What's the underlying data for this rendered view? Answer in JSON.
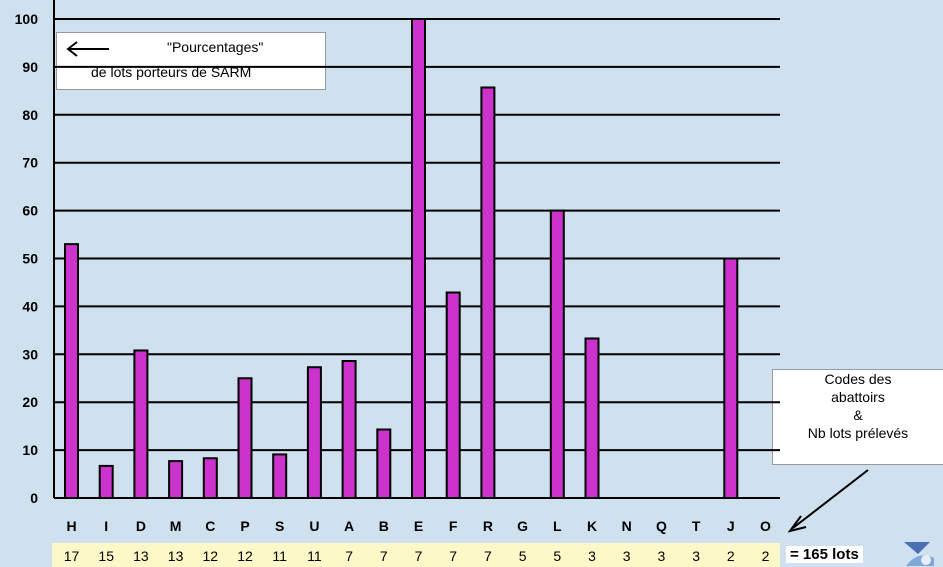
{
  "chart_data": {
    "type": "bar",
    "categories": [
      "H",
      "I",
      "D",
      "M",
      "C",
      "P",
      "S",
      "U",
      "A",
      "B",
      "E",
      "F",
      "R",
      "G",
      "L",
      "K",
      "N",
      "Q",
      "T",
      "J",
      "O"
    ],
    "values": [
      53,
      6.7,
      30.8,
      7.7,
      8.3,
      25,
      9.1,
      27.3,
      28.6,
      14.3,
      100,
      42.9,
      85.7,
      0,
      60,
      33.3,
      0,
      0,
      0,
      50,
      0
    ],
    "counts": [
      "17",
      "15",
      "13",
      "13",
      "12",
      "12",
      "11",
      "11",
      "7",
      "7",
      "7",
      "7",
      "7",
      "5",
      "5",
      "3",
      "3",
      "3",
      "3",
      "2",
      "2"
    ],
    "yticks": [
      "0",
      "10",
      "20",
      "30",
      "40",
      "50",
      "60",
      "70",
      "80",
      "90",
      "100"
    ],
    "ylim": [
      0,
      100
    ],
    "grid": true,
    "bar_color": "#cc33cc",
    "bar_outline": "#000000",
    "background": "#cfe0ee"
  },
  "legend": {
    "line1": "\"Pourcentages\"",
    "line2": "de lots porteurs de SARM"
  },
  "annotation": {
    "lines": [
      "Codes des",
      "abattoirs",
      "&",
      "Nb lots prélevés"
    ]
  },
  "total": "= 165 lots",
  "icons": {
    "logo": "institution-logo-icon"
  }
}
